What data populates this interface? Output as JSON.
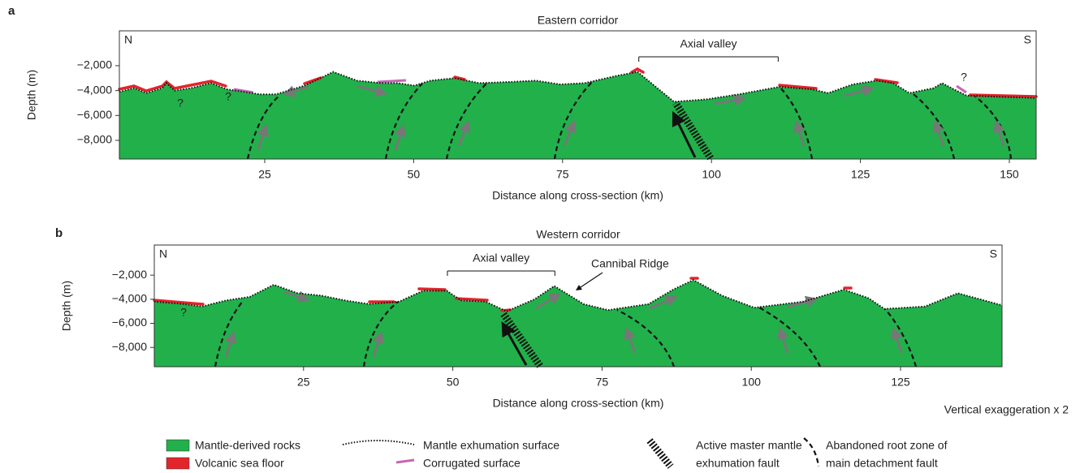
{
  "chart_data": [
    {
      "type": "area",
      "panel": "a",
      "title": "Eastern corridor",
      "corners": [
        "N",
        "S"
      ],
      "xlabel": "Distance along cross-section (km)",
      "ylabel": "Depth (m)",
      "color": "#22b04b",
      "x": [
        0.6,
        3.1,
        5.1,
        7.8,
        8.5,
        9.9,
        12.6,
        16.0,
        18.7,
        21.5,
        24.2,
        26.9,
        31.7,
        36.5,
        40.5,
        44.6,
        47.4,
        50.1,
        52.8,
        56.9,
        61.0,
        66.4,
        70.5,
        74.6,
        78.7,
        84.2,
        87.6,
        93.7,
        99.2,
        104.6,
        111.4,
        116.9,
        119.6,
        123.7,
        127.8,
        130.5,
        133.2,
        137.3,
        138.7,
        140.7,
        142.8,
        148.2,
        154.5
      ],
      "values": [
        -4100,
        -3800,
        -4200,
        -3800,
        -3400,
        -4000,
        -3800,
        -3400,
        -3900,
        -4100,
        -4300,
        -4300,
        -3600,
        -2500,
        -3200,
        -3400,
        -3400,
        -3600,
        -3200,
        -3000,
        -3400,
        -3300,
        -3200,
        -3500,
        -3400,
        -2800,
        -2500,
        -4900,
        -4700,
        -4300,
        -3700,
        -3900,
        -4200,
        -3500,
        -3200,
        -3400,
        -4200,
        -3800,
        -3400,
        -3900,
        -4400,
        -4500,
        -4600
      ],
      "xlim": [
        0.6,
        154.5
      ],
      "xticks": [
        25,
        50,
        75,
        100,
        125,
        150
      ],
      "ylim": [
        -9500,
        800
      ],
      "yticks": [
        {
          "value": -2000,
          "label": "−2,000"
        },
        {
          "value": -4000,
          "label": "−4,000"
        },
        {
          "value": -6000,
          "label": "−6,000"
        },
        {
          "value": -8000,
          "label": "−8,000"
        }
      ],
      "annotations": [
        {
          "text": "Axial valley",
          "span": [
            87.8,
            111.2
          ]
        }
      ],
      "uncertain_labels": [
        "?",
        "?",
        "?"
      ]
    },
    {
      "type": "area",
      "panel": "b",
      "title": "Western corridor",
      "corners": [
        "N",
        "S"
      ],
      "xlabel": "Distance along cross-section (km)",
      "ylabel": "Depth (m)",
      "color": "#22b04b",
      "x": [
        0,
        5,
        8,
        12,
        16,
        20,
        24,
        28,
        32,
        36,
        41,
        45,
        49,
        51.4,
        55.5,
        59,
        63.7,
        67,
        71.9,
        76,
        82.8,
        86.9,
        90.3,
        95.1,
        100.5,
        108.7,
        115.5,
        119.6,
        122.3,
        129.1,
        134.6,
        142
      ],
      "values": [
        -4200,
        -4400,
        -4600,
        -4100,
        -3800,
        -2800,
        -3500,
        -3700,
        -4100,
        -4400,
        -4200,
        -3300,
        -3300,
        -4100,
        -4200,
        -5000,
        -4000,
        -2900,
        -4400,
        -4900,
        -4400,
        -3200,
        -2400,
        -3700,
        -4700,
        -4200,
        -3200,
        -3900,
        -4800,
        -4600,
        -3500,
        -4500
      ],
      "xlim": [
        0,
        142
      ],
      "xticks": [
        25,
        50,
        75,
        100,
        125
      ],
      "ylim": [
        -9600,
        500
      ],
      "yticks": [
        {
          "value": -2000,
          "label": "−2,000"
        },
        {
          "value": -4000,
          "label": "−4,000"
        },
        {
          "value": -6000,
          "label": "−6,000"
        },
        {
          "value": -8000,
          "label": "−8,000"
        }
      ],
      "annotations": [
        {
          "text": "Axial valley",
          "span": [
            49.1,
            67.1
          ]
        }
      ],
      "callout": "Cannibal Ridge",
      "uncertain_labels": [
        "?"
      ]
    }
  ],
  "note": "Vertical exaggeration x 2",
  "legend": [
    "Mantle-derived rocks",
    "Volcanic sea floor",
    "Mantle exhumation surface",
    "Corrugated surface",
    [
      "Active master mantle",
      "exhumation fault"
    ],
    [
      "Abandoned root zone of",
      "main detachment fault"
    ]
  ]
}
